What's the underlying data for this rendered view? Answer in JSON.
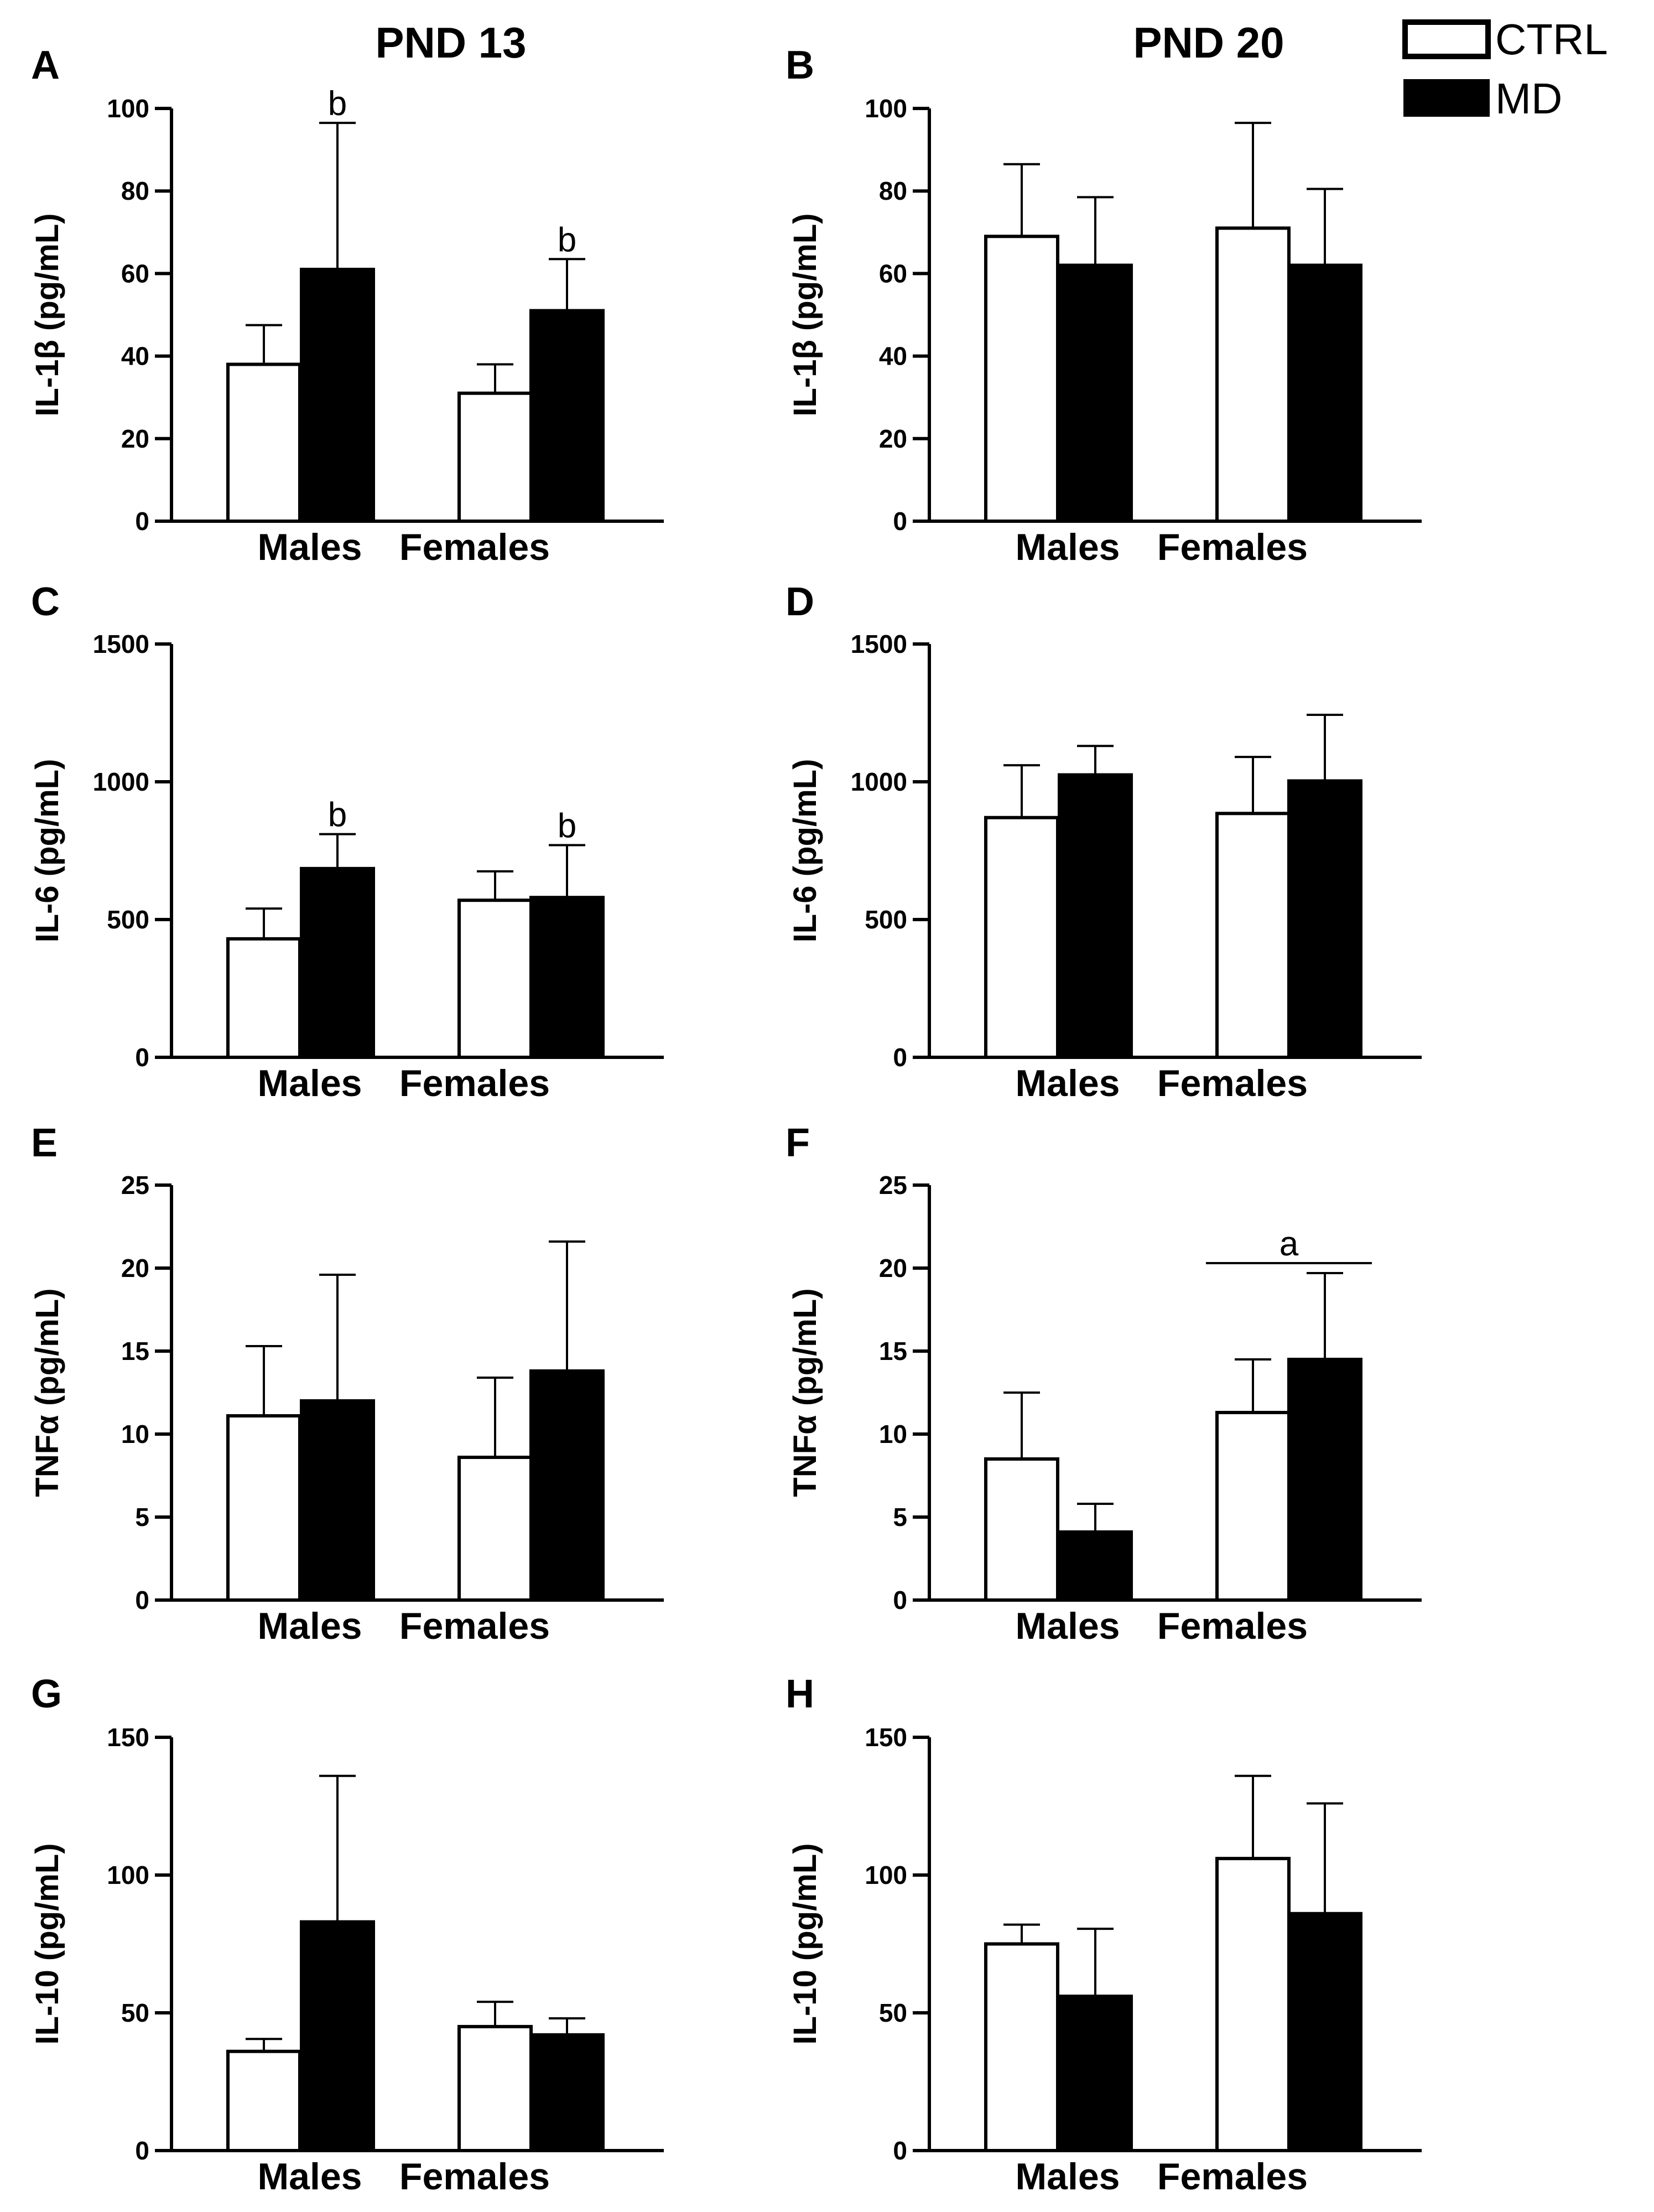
{
  "figure": {
    "column_titles": [
      "PND 13",
      "PND 20"
    ]
  },
  "legend": {
    "entries": [
      {
        "name": "CTRL",
        "fill": "#ffffff"
      },
      {
        "name": "MD",
        "fill": "#000000"
      }
    ]
  },
  "colors": {
    "ctrl": "#ffffff",
    "md": "#000000",
    "stroke": "#000000"
  },
  "chart_data": [
    {
      "panel": "A",
      "type": "bar",
      "title": "PND 13",
      "ylabel": "IL-1β (pg/mL)",
      "ylim": [
        0,
        100
      ],
      "yticks": [
        0,
        20,
        40,
        60,
        80,
        100
      ],
      "categories": [
        "Males",
        "Females"
      ],
      "series": [
        {
          "name": "CTRL",
          "values": [
            38,
            31
          ],
          "errors": [
            9.5,
            7
          ]
        },
        {
          "name": "MD",
          "values": [
            61,
            51
          ],
          "errors": [
            35.5,
            12.5
          ]
        }
      ],
      "annotations": [
        {
          "text": "b",
          "series": "MD",
          "category": "Males"
        },
        {
          "text": "b",
          "series": "MD",
          "category": "Females"
        }
      ]
    },
    {
      "panel": "B",
      "type": "bar",
      "title": "PND 20",
      "ylabel": "IL-1β (pg/mL)",
      "ylim": [
        0,
        100
      ],
      "yticks": [
        0,
        20,
        40,
        60,
        80,
        100
      ],
      "categories": [
        "Males",
        "Females"
      ],
      "series": [
        {
          "name": "CTRL",
          "values": [
            69,
            71
          ],
          "errors": [
            17.5,
            25.5
          ]
        },
        {
          "name": "MD",
          "values": [
            62,
            62
          ],
          "errors": [
            16.5,
            18.5
          ]
        }
      ],
      "annotations": []
    },
    {
      "panel": "C",
      "type": "bar",
      "title": "PND 13",
      "ylabel": "IL-6 (pg/mL)",
      "ylim": [
        0,
        1500
      ],
      "yticks": [
        0,
        500,
        1000,
        1500
      ],
      "categories": [
        "Males",
        "Females"
      ],
      "series": [
        {
          "name": "CTRL",
          "values": [
            430,
            570
          ],
          "errors": [
            110,
            105
          ]
        },
        {
          "name": "MD",
          "values": [
            685,
            580
          ],
          "errors": [
            125,
            190
          ]
        }
      ],
      "annotations": [
        {
          "text": "b",
          "series": "MD",
          "category": "Males"
        },
        {
          "text": "b",
          "series": "MD",
          "category": "Females"
        }
      ]
    },
    {
      "panel": "D",
      "type": "bar",
      "title": "PND 20",
      "ylabel": "IL-6 (pg/mL)",
      "ylim": [
        0,
        1500
      ],
      "yticks": [
        0,
        500,
        1000,
        1500
      ],
      "categories": [
        "Males",
        "Females"
      ],
      "series": [
        {
          "name": "CTRL",
          "values": [
            870,
            885
          ],
          "errors": [
            190,
            205
          ]
        },
        {
          "name": "MD",
          "values": [
            1025,
            1003
          ],
          "errors": [
            105,
            240
          ]
        }
      ],
      "annotations": []
    },
    {
      "panel": "E",
      "type": "bar",
      "title": "PND 13",
      "ylabel": "TNFα (pg/mL)",
      "ylim": [
        0,
        25
      ],
      "yticks": [
        0,
        5,
        10,
        15,
        20,
        25
      ],
      "categories": [
        "Males",
        "Females"
      ],
      "series": [
        {
          "name": "CTRL",
          "values": [
            11.1,
            8.6
          ],
          "errors": [
            4.2,
            4.8
          ]
        },
        {
          "name": "MD",
          "values": [
            12.0,
            13.8
          ],
          "errors": [
            7.6,
            7.8
          ]
        }
      ],
      "annotations": []
    },
    {
      "panel": "F",
      "type": "bar",
      "title": "PND 20",
      "ylabel": "TNFα (pg/mL)",
      "ylim": [
        0,
        25
      ],
      "yticks": [
        0,
        5,
        10,
        15,
        20,
        25
      ],
      "categories": [
        "Males",
        "Females"
      ],
      "series": [
        {
          "name": "CTRL",
          "values": [
            8.5,
            11.3
          ],
          "errors": [
            4.0,
            3.2
          ]
        },
        {
          "name": "MD",
          "values": [
            4.1,
            14.5
          ],
          "errors": [
            1.7,
            5.2
          ]
        }
      ],
      "annotations": [],
      "brackets": [
        {
          "text": "a",
          "category": "Females",
          "y": 20.3
        }
      ]
    },
    {
      "panel": "G",
      "type": "bar",
      "title": "PND 13",
      "ylabel": "IL-10 (pg/mL)",
      "ylim": [
        0,
        150
      ],
      "yticks": [
        0,
        50,
        100,
        150
      ],
      "categories": [
        "Males",
        "Females"
      ],
      "series": [
        {
          "name": "CTRL",
          "values": [
            36,
            45
          ],
          "errors": [
            4.5,
            9
          ]
        },
        {
          "name": "MD",
          "values": [
            83,
            42
          ],
          "errors": [
            53,
            6
          ]
        }
      ],
      "annotations": []
    },
    {
      "panel": "H",
      "type": "bar",
      "title": "PND 20",
      "ylabel": "IL-10 (pg/mL)",
      "ylim": [
        0,
        150
      ],
      "yticks": [
        0,
        50,
        100,
        150
      ],
      "categories": [
        "Males",
        "Females"
      ],
      "series": [
        {
          "name": "CTRL",
          "values": [
            75,
            106
          ],
          "errors": [
            7,
            30
          ]
        },
        {
          "name": "MD",
          "values": [
            56,
            86
          ],
          "errors": [
            24.5,
            40
          ]
        }
      ],
      "annotations": []
    }
  ]
}
